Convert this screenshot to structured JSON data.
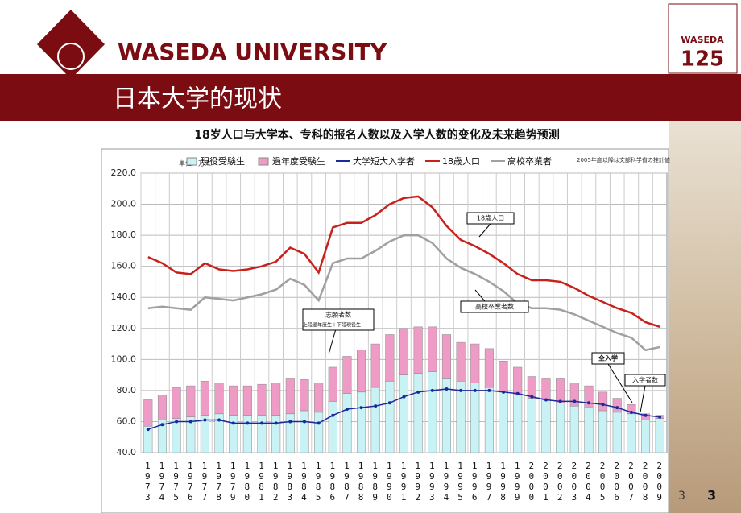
{
  "header": {
    "brand": "WASEDA UNIVERSITY",
    "logo_top": "WASEDA",
    "logo_bottom": "125",
    "slide_title": "日本大学的现状",
    "page_number": "3",
    "page_number_small": "3"
  },
  "chart_data": {
    "type": "bar-line",
    "title": "18岁人口与大学本、专科的报名人数以及入学人数的变化及未来趋势预测",
    "unit_note": "単位：万人",
    "source_note": "2005年度以降は文部科学省の推計値",
    "categories": [
      "1973",
      "1974",
      "1975",
      "1976",
      "1977",
      "1978",
      "1979",
      "1980",
      "1981",
      "1982",
      "1983",
      "1984",
      "1985",
      "1986",
      "1987",
      "1988",
      "1989",
      "1990",
      "1991",
      "1992",
      "1993",
      "1994",
      "1995",
      "1996",
      "1997",
      "1998",
      "1999",
      "2000",
      "2001",
      "2002",
      "2003",
      "2004",
      "2005",
      "2006",
      "2007",
      "2008",
      "2009"
    ],
    "series": [
      {
        "name": "現役受験生",
        "kind": "bar",
        "color": "#c8f2f4",
        "values": [
          57,
          61,
          62,
          63,
          64,
          65,
          64,
          64,
          64,
          64,
          65,
          67,
          66,
          73,
          78,
          79,
          82,
          86,
          90,
          91,
          92,
          88,
          86,
          85,
          82,
          79,
          77,
          75,
          74,
          72,
          70,
          69,
          67,
          66,
          65,
          61,
          62
        ]
      },
      {
        "name": "過年度受験生",
        "kind": "bar",
        "color": "#ee9cc6",
        "values": [
          17,
          16,
          20,
          20,
          22,
          20,
          19,
          19,
          20,
          21,
          23,
          20,
          19,
          22,
          24,
          27,
          28,
          30,
          30,
          30,
          29,
          28,
          25,
          25,
          25,
          20,
          18,
          14,
          14,
          16,
          15,
          14,
          12,
          9,
          6,
          4,
          2
        ]
      },
      {
        "name": "大学短大入学者",
        "kind": "line",
        "color": "#1a2a9c",
        "values": [
          55,
          58,
          60,
          60,
          61,
          61,
          59,
          59,
          59,
          59,
          60,
          60,
          59,
          64,
          68,
          69,
          70,
          72,
          76,
          79,
          80,
          81,
          80,
          80,
          80,
          79,
          78,
          76,
          74,
          73,
          73,
          72,
          71,
          69,
          66,
          64,
          63
        ]
      },
      {
        "name": "18歳人口",
        "kind": "line",
        "color": "#c8201c",
        "values": [
          166,
          162,
          156,
          155,
          162,
          158,
          157,
          158,
          160,
          163,
          172,
          168,
          156,
          185,
          188,
          188,
          193,
          200,
          204,
          205,
          198,
          186,
          177,
          173,
          168,
          162,
          155,
          151,
          151,
          150,
          146,
          141,
          137,
          133,
          130,
          124,
          121
        ]
      },
      {
        "name": "高校卒業者",
        "kind": "line",
        "color": "#a0a0a0",
        "values": [
          133,
          134,
          133,
          132,
          140,
          139,
          138,
          140,
          142,
          145,
          152,
          148,
          138,
          162,
          165,
          165,
          170,
          176,
          180,
          180,
          175,
          165,
          159,
          155,
          150,
          144,
          136,
          133,
          133,
          132,
          129,
          125,
          121,
          117,
          114,
          106,
          108
        ]
      }
    ],
    "annotations": [
      "18歳人口",
      "高校卒業者数",
      "志願者数",
      "上段過年度生＋下段現役生",
      "全入学",
      "入学者数"
    ],
    "ylim": [
      40,
      220
    ],
    "yticks": [
      {
        "value": 40,
        "label": "40.0"
      },
      {
        "value": 60,
        "label": "60.0"
      },
      {
        "value": 80,
        "label": "80.0"
      },
      {
        "value": 100,
        "label": "100.0"
      },
      {
        "value": 120,
        "label": "120.0"
      },
      {
        "value": 140,
        "label": "140.0"
      },
      {
        "value": 160,
        "label": "160.0"
      },
      {
        "value": 180,
        "label": "180.0"
      },
      {
        "value": 200,
        "label": "200.0"
      },
      {
        "value": 220,
        "label": "220.0"
      }
    ],
    "grid": true
  }
}
